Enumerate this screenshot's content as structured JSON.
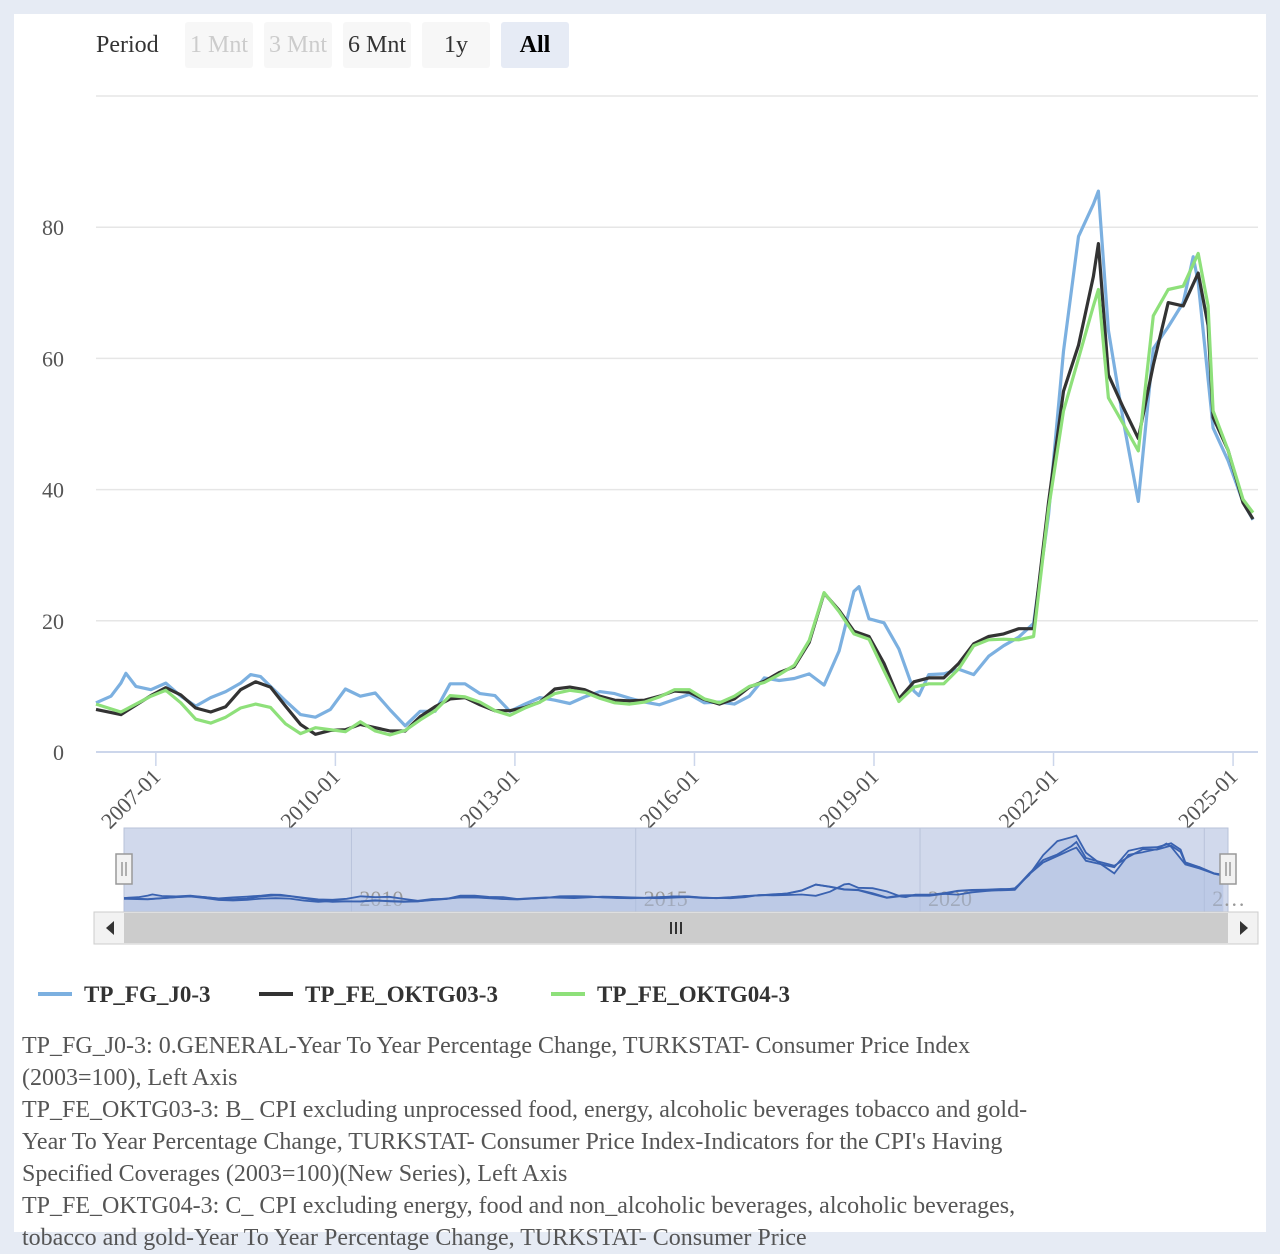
{
  "range_selector": {
    "label": "Period",
    "buttons": [
      {
        "label": "1 Mnt",
        "state": "disabled"
      },
      {
        "label": "3 Mnt",
        "state": "disabled"
      },
      {
        "label": "6 Mnt",
        "state": "normal"
      },
      {
        "label": "1y",
        "state": "normal"
      },
      {
        "label": "All",
        "state": "selected"
      }
    ]
  },
  "navigator": {
    "tick_labels": [
      "2010",
      "2015",
      "2020",
      "2…"
    ]
  },
  "chart_data": {
    "type": "line",
    "y_ticks": [
      "0",
      "20",
      "40",
      "60",
      "80"
    ],
    "ylim": [
      0,
      100
    ],
    "x_ticks": [
      "2007-01",
      "2010-01",
      "2013-01",
      "2016-01",
      "2019-01",
      "2022-01",
      "2025-01"
    ],
    "xlim": [
      "2006-01",
      "2025-06"
    ],
    "grid": true,
    "legend_position": "bottom-left",
    "series": [
      {
        "name": "TP_FG_J0-3",
        "color": "#7cb0e0",
        "points": [
          [
            "2006-01",
            7.5
          ],
          [
            "2006-04",
            8.5
          ],
          [
            "2006-06",
            10.5
          ],
          [
            "2006-07",
            12
          ],
          [
            "2006-09",
            10
          ],
          [
            "2006-12",
            9.5
          ],
          [
            "2007-03",
            10.5
          ],
          [
            "2007-06",
            8.5
          ],
          [
            "2007-09",
            7
          ],
          [
            "2007-12",
            8.3
          ],
          [
            "2008-03",
            9.2
          ],
          [
            "2008-06",
            10.5
          ],
          [
            "2008-08",
            11.8
          ],
          [
            "2008-10",
            11.5
          ],
          [
            "2008-12",
            10
          ],
          [
            "2009-03",
            7.8
          ],
          [
            "2009-06",
            5.7
          ],
          [
            "2009-09",
            5.3
          ],
          [
            "2009-12",
            6.5
          ],
          [
            "2010-03",
            9.6
          ],
          [
            "2010-06",
            8.5
          ],
          [
            "2010-09",
            9
          ],
          [
            "2010-12",
            6.4
          ],
          [
            "2011-03",
            4
          ],
          [
            "2011-06",
            6.2
          ],
          [
            "2011-09",
            6.2
          ],
          [
            "2011-12",
            10.4
          ],
          [
            "2012-03",
            10.4
          ],
          [
            "2012-06",
            8.9
          ],
          [
            "2012-09",
            8.6
          ],
          [
            "2012-12",
            6.2
          ],
          [
            "2013-03",
            7.3
          ],
          [
            "2013-06",
            8.3
          ],
          [
            "2013-09",
            7.9
          ],
          [
            "2013-12",
            7.4
          ],
          [
            "2014-03",
            8.4
          ],
          [
            "2014-06",
            9.2
          ],
          [
            "2014-09",
            8.9
          ],
          [
            "2014-12",
            8.2
          ],
          [
            "2015-03",
            7.6
          ],
          [
            "2015-06",
            7.2
          ],
          [
            "2015-09",
            8
          ],
          [
            "2015-12",
            8.8
          ],
          [
            "2016-03",
            7.5
          ],
          [
            "2016-06",
            7.6
          ],
          [
            "2016-09",
            7.3
          ],
          [
            "2016-12",
            8.5
          ],
          [
            "2017-03",
            11.3
          ],
          [
            "2017-06",
            10.9
          ],
          [
            "2017-09",
            11.2
          ],
          [
            "2017-12",
            11.9
          ],
          [
            "2018-03",
            10.2
          ],
          [
            "2018-06",
            15.4
          ],
          [
            "2018-09",
            24.5
          ],
          [
            "2018-10",
            25.2
          ],
          [
            "2018-12",
            20.3
          ],
          [
            "2019-03",
            19.7
          ],
          [
            "2019-06",
            15.7
          ],
          [
            "2019-09",
            9.3
          ],
          [
            "2019-10",
            8.6
          ],
          [
            "2019-12",
            11.8
          ],
          [
            "2020-03",
            11.9
          ],
          [
            "2020-06",
            12.6
          ],
          [
            "2020-09",
            11.8
          ],
          [
            "2020-12",
            14.6
          ],
          [
            "2021-03",
            16.2
          ],
          [
            "2021-06",
            17.5
          ],
          [
            "2021-09",
            19.6
          ],
          [
            "2021-12",
            36.1
          ],
          [
            "2022-03",
            61.1
          ],
          [
            "2022-06",
            78.6
          ],
          [
            "2022-09",
            83.5
          ],
          [
            "2022-10",
            85.5
          ],
          [
            "2022-12",
            64.3
          ],
          [
            "2023-03",
            50.5
          ],
          [
            "2023-06",
            38.2
          ],
          [
            "2023-09",
            61.5
          ],
          [
            "2023-12",
            64.8
          ],
          [
            "2024-03",
            68.5
          ],
          [
            "2024-05",
            75.5
          ],
          [
            "2024-06",
            71.6
          ],
          [
            "2024-09",
            49.4
          ],
          [
            "2024-12",
            44.4
          ],
          [
            "2025-03",
            38.1
          ],
          [
            "2025-05",
            35.4
          ]
        ]
      },
      {
        "name": "TP_FE_OKTG03-3",
        "color": "#333333",
        "points": [
          [
            "2006-01",
            6.5
          ],
          [
            "2006-06",
            5.7
          ],
          [
            "2006-12",
            8.6
          ],
          [
            "2007-03",
            9.8
          ],
          [
            "2007-06",
            8.7
          ],
          [
            "2007-09",
            6.7
          ],
          [
            "2007-12",
            6.1
          ],
          [
            "2008-03",
            6.9
          ],
          [
            "2008-06",
            9.5
          ],
          [
            "2008-09",
            10.7
          ],
          [
            "2008-12",
            9.9
          ],
          [
            "2009-03",
            7
          ],
          [
            "2009-06",
            4.2
          ],
          [
            "2009-09",
            2.7
          ],
          [
            "2009-12",
            3.3
          ],
          [
            "2010-03",
            3.4
          ],
          [
            "2010-06",
            4.2
          ],
          [
            "2010-09",
            3.7
          ],
          [
            "2010-12",
            3.2
          ],
          [
            "2011-03",
            3.2
          ],
          [
            "2011-06",
            5.4
          ],
          [
            "2011-09",
            6.9
          ],
          [
            "2011-12",
            8.1
          ],
          [
            "2012-03",
            8.3
          ],
          [
            "2012-06",
            7.2
          ],
          [
            "2012-09",
            6.3
          ],
          [
            "2012-12",
            6.3
          ],
          [
            "2013-03",
            6.8
          ],
          [
            "2013-06",
            7.6
          ],
          [
            "2013-09",
            9.6
          ],
          [
            "2013-12",
            9.9
          ],
          [
            "2014-03",
            9.5
          ],
          [
            "2014-06",
            8.5
          ],
          [
            "2014-09",
            7.9
          ],
          [
            "2014-12",
            7.8
          ],
          [
            "2015-03",
            7.9
          ],
          [
            "2015-06",
            8.5
          ],
          [
            "2015-09",
            9.3
          ],
          [
            "2015-12",
            9.1
          ],
          [
            "2016-03",
            8
          ],
          [
            "2016-06",
            7.3
          ],
          [
            "2016-09",
            8.1
          ],
          [
            "2016-12",
            9.9
          ],
          [
            "2017-03",
            10.8
          ],
          [
            "2017-06",
            12.1
          ],
          [
            "2017-09",
            13
          ],
          [
            "2017-12",
            16.7
          ],
          [
            "2018-03",
            24.2
          ],
          [
            "2018-06",
            21.6
          ],
          [
            "2018-09",
            18.4
          ],
          [
            "2018-12",
            17.6
          ],
          [
            "2019-03",
            13.5
          ],
          [
            "2019-06",
            8.1
          ],
          [
            "2019-09",
            10.7
          ],
          [
            "2019-12",
            11.3
          ],
          [
            "2020-03",
            11.3
          ],
          [
            "2020-06",
            13.5
          ],
          [
            "2020-09",
            16.5
          ],
          [
            "2020-12",
            17.6
          ],
          [
            "2021-03",
            18
          ],
          [
            "2021-06",
            18.8
          ],
          [
            "2021-09",
            18.8
          ],
          [
            "2021-12",
            38
          ],
          [
            "2022-03",
            55
          ],
          [
            "2022-06",
            62
          ],
          [
            "2022-09",
            72.5
          ],
          [
            "2022-10",
            77.5
          ],
          [
            "2022-12",
            57.5
          ],
          [
            "2023-03",
            52.5
          ],
          [
            "2023-06",
            47.8
          ],
          [
            "2023-09",
            59
          ],
          [
            "2023-12",
            68.5
          ],
          [
            "2024-03",
            68
          ],
          [
            "2024-06",
            73
          ],
          [
            "2024-08",
            65
          ],
          [
            "2024-09",
            51
          ],
          [
            "2024-12",
            46
          ],
          [
            "2025-03",
            38
          ],
          [
            "2025-05",
            35.5
          ]
        ]
      },
      {
        "name": "TP_FE_OKTG04-3",
        "color": "#8ee07a",
        "points": [
          [
            "2006-01",
            7.3
          ],
          [
            "2006-06",
            6.1
          ],
          [
            "2006-12",
            8.5
          ],
          [
            "2007-03",
            9.4
          ],
          [
            "2007-06",
            7.5
          ],
          [
            "2007-09",
            5
          ],
          [
            "2007-12",
            4.4
          ],
          [
            "2008-03",
            5.3
          ],
          [
            "2008-06",
            6.7
          ],
          [
            "2008-09",
            7.3
          ],
          [
            "2008-12",
            6.8
          ],
          [
            "2009-03",
            4.3
          ],
          [
            "2009-06",
            2.8
          ],
          [
            "2009-09",
            3.7
          ],
          [
            "2009-12",
            3.4
          ],
          [
            "2010-03",
            3.1
          ],
          [
            "2010-06",
            4.6
          ],
          [
            "2010-09",
            3.2
          ],
          [
            "2010-12",
            2.6
          ],
          [
            "2011-03",
            3.3
          ],
          [
            "2011-06",
            4.9
          ],
          [
            "2011-09",
            6.3
          ],
          [
            "2011-12",
            8.6
          ],
          [
            "2012-03",
            8.4
          ],
          [
            "2012-06",
            7.6
          ],
          [
            "2012-09",
            6.3
          ],
          [
            "2012-12",
            5.6
          ],
          [
            "2013-03",
            6.7
          ],
          [
            "2013-06",
            7.6
          ],
          [
            "2013-09",
            8.9
          ],
          [
            "2013-12",
            9.4
          ],
          [
            "2014-03",
            9.1
          ],
          [
            "2014-06",
            8.2
          ],
          [
            "2014-09",
            7.5
          ],
          [
            "2014-12",
            7.3
          ],
          [
            "2015-03",
            7.6
          ],
          [
            "2015-06",
            8.4
          ],
          [
            "2015-09",
            9.5
          ],
          [
            "2015-12",
            9.5
          ],
          [
            "2016-03",
            8.1
          ],
          [
            "2016-06",
            7.5
          ],
          [
            "2016-09",
            8.5
          ],
          [
            "2016-12",
            10
          ],
          [
            "2017-03",
            10.6
          ],
          [
            "2017-06",
            11.8
          ],
          [
            "2017-09",
            13.2
          ],
          [
            "2017-12",
            17
          ],
          [
            "2018-03",
            24.3
          ],
          [
            "2018-06",
            21.4
          ],
          [
            "2018-09",
            18
          ],
          [
            "2018-12",
            17.2
          ],
          [
            "2019-03",
            12.4
          ],
          [
            "2019-06",
            7.7
          ],
          [
            "2019-09",
            9.9
          ],
          [
            "2019-12",
            10.4
          ],
          [
            "2020-03",
            10.4
          ],
          [
            "2020-06",
            12.7
          ],
          [
            "2020-09",
            16.2
          ],
          [
            "2020-12",
            17.1
          ],
          [
            "2021-03",
            17.2
          ],
          [
            "2021-06",
            17.1
          ],
          [
            "2021-09",
            17.6
          ],
          [
            "2021-12",
            37
          ],
          [
            "2022-03",
            52
          ],
          [
            "2022-06",
            60
          ],
          [
            "2022-09",
            68
          ],
          [
            "2022-10",
            70.5
          ],
          [
            "2022-12",
            54
          ],
          [
            "2023-03",
            50
          ],
          [
            "2023-06",
            45.9
          ],
          [
            "2023-09",
            66.5
          ],
          [
            "2023-12",
            70.5
          ],
          [
            "2024-03",
            71
          ],
          [
            "2024-06",
            76
          ],
          [
            "2024-08",
            68
          ],
          [
            "2024-09",
            52
          ],
          [
            "2024-12",
            46
          ],
          [
            "2025-03",
            38.5
          ],
          [
            "2025-05",
            36.5
          ]
        ]
      }
    ]
  },
  "notes": [
    "TP_FG_J0-3: 0.GENERAL-Year To Year Percentage Change, TURKSTAT- Consumer Price Index (2003=100), Left Axis",
    "TP_FE_OKTG03-3: B_ CPI excluding unprocessed food, energy, alcoholic beverages tobacco and gold-Year To Year Percentage Change, TURKSTAT- Consumer Price Index-Indicators for the CPI's Having Specified Coverages (2003=100)(New Series), Left Axis",
    "TP_FE_OKTG04-3: C_ CPI excluding energy, food and non_alcoholic beverages, alcoholic beverages, tobacco and gold-Year To Year Percentage Change, TURKSTAT- Consumer Price"
  ]
}
